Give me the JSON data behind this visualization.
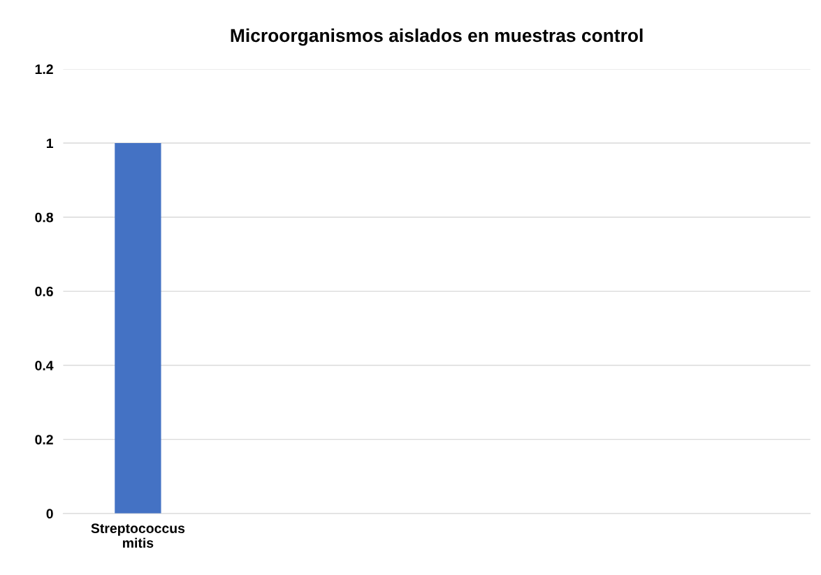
{
  "chart_data": {
    "type": "bar",
    "title": "Microorganismos aislados en muestras control",
    "categories": [
      "Streptococcus\nmitis",
      null,
      null,
      null,
      null
    ],
    "values": [
      1,
      null,
      null,
      null,
      null
    ],
    "color": "#4472c4",
    "ylim": [
      0,
      1.2
    ],
    "yticks": [
      0,
      0.2,
      0.4,
      0.6,
      0.8,
      1,
      1.2
    ],
    "grid": "y"
  }
}
